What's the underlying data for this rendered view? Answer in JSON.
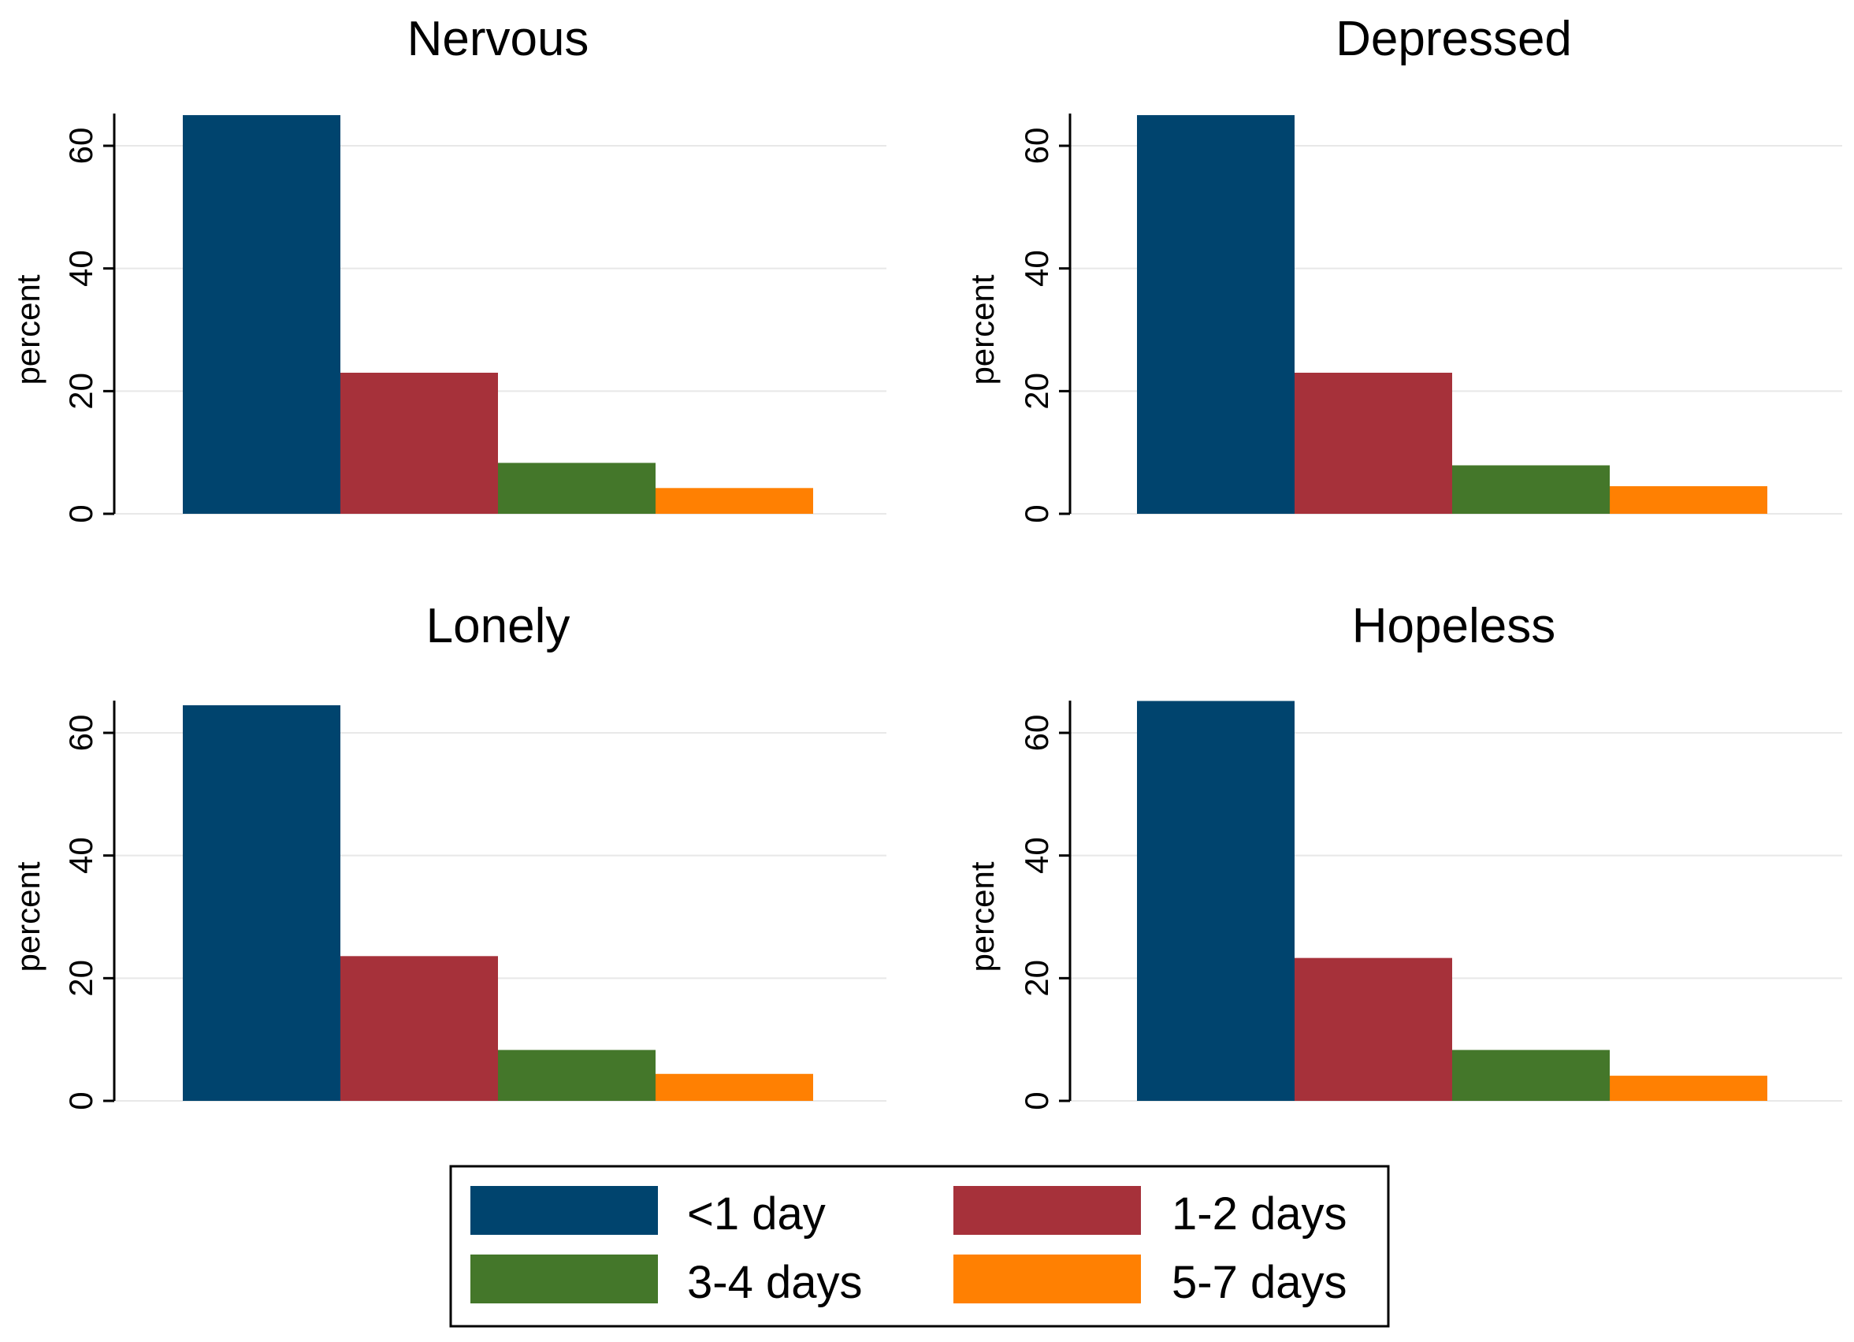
{
  "chart_data": [
    {
      "type": "bar",
      "title": "Nervous",
      "ylabel": "percent",
      "xlabel": "",
      "ylim": [
        0,
        65
      ],
      "yticks": [
        0,
        20,
        40,
        60
      ],
      "grid": true,
      "categories": [
        "<1 day",
        "1-2 days",
        "3-4 days",
        "5-7 days"
      ],
      "values": [
        65,
        23,
        8.3,
        4.2
      ]
    },
    {
      "type": "bar",
      "title": "Depressed",
      "ylabel": "percent",
      "xlabel": "",
      "ylim": [
        0,
        65
      ],
      "yticks": [
        0,
        20,
        40,
        60
      ],
      "grid": true,
      "categories": [
        "<1 day",
        "1-2 days",
        "3-4 days",
        "5-7 days"
      ],
      "values": [
        65,
        23,
        7.9,
        4.5
      ]
    },
    {
      "type": "bar",
      "title": "Lonely",
      "ylabel": "percent",
      "xlabel": "",
      "ylim": [
        0,
        65
      ],
      "yticks": [
        0,
        20,
        40,
        60
      ],
      "grid": true,
      "categories": [
        "<1 day",
        "1-2 days",
        "3-4 days",
        "5-7 days"
      ],
      "values": [
        64.5,
        23.6,
        8.3,
        4.4
      ]
    },
    {
      "type": "bar",
      "title": "Hopeless",
      "ylabel": "percent",
      "xlabel": "",
      "ylim": [
        0,
        65
      ],
      "yticks": [
        0,
        20,
        40,
        60
      ],
      "grid": true,
      "categories": [
        "<1 day",
        "1-2 days",
        "3-4 days",
        "5-7 days"
      ],
      "values": [
        65.2,
        23.3,
        8.3,
        4.1
      ]
    }
  ],
  "legend": {
    "placement": "bottom-center",
    "entries": [
      {
        "label": "<1 day",
        "color": "#00446E"
      },
      {
        "label": "1-2 days",
        "color": "#A6313A"
      },
      {
        "label": "3-4 days",
        "color": "#44772A"
      },
      {
        "label": "5-7 days",
        "color": "#FF8002"
      }
    ]
  },
  "colors": {
    "grid": "#e8e8e8",
    "axis": "#000000",
    "legend_border": "#000000"
  }
}
